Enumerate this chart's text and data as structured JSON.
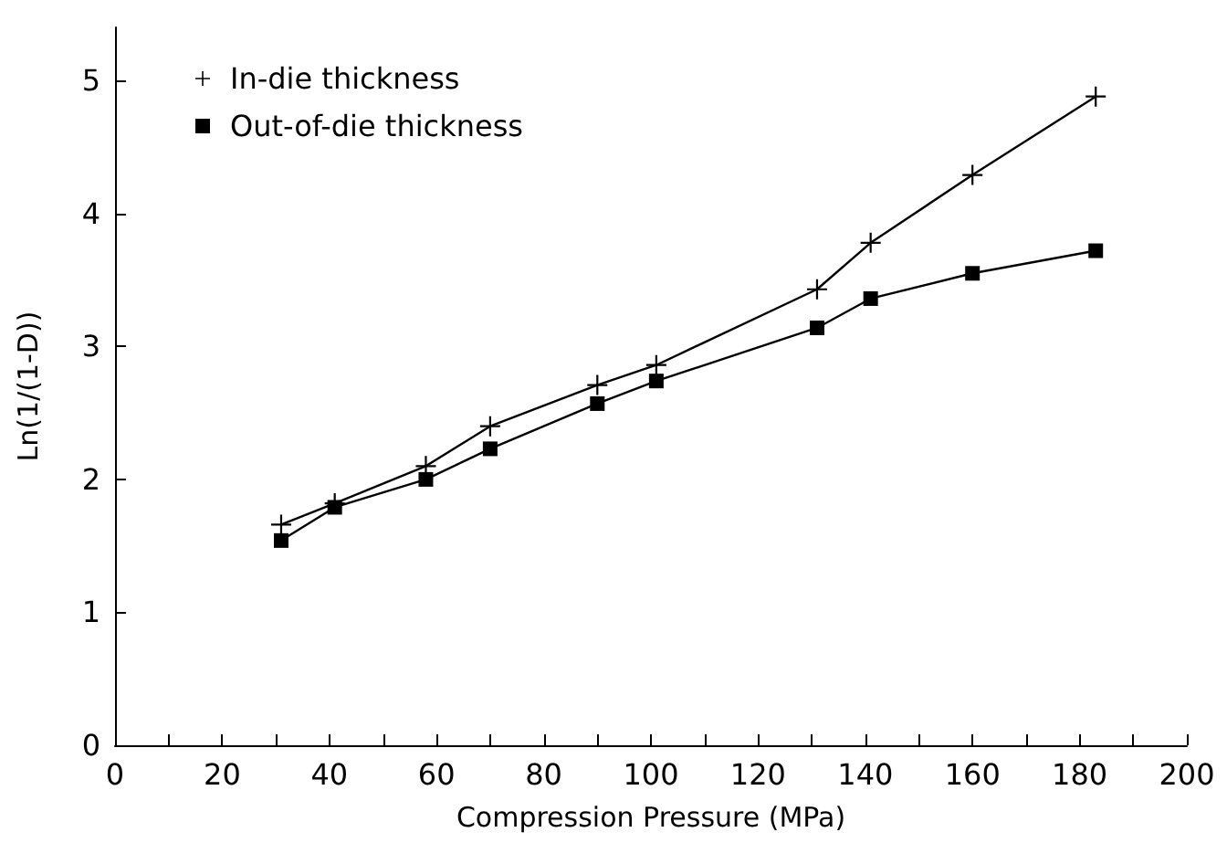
{
  "chart_data": {
    "type": "line",
    "xlabel": "Compression Pressure (MPa)",
    "ylabel": "Ln(1/(1-D))",
    "x": [
      31,
      41,
      58,
      70,
      90,
      101,
      131,
      141,
      160,
      183
    ],
    "series": [
      {
        "name": "In-die thickness",
        "color": "#000000",
        "marker": "cross",
        "values": [
          1.66,
          1.82,
          2.1,
          2.4,
          2.71,
          2.86,
          3.43,
          3.78,
          4.29,
          4.88
        ]
      },
      {
        "name": "Out-of-die thickness",
        "color": "#000000",
        "marker": "square",
        "values": [
          1.54,
          1.79,
          2.0,
          2.23,
          2.57,
          2.74,
          3.14,
          3.36,
          3.55,
          3.72
        ]
      }
    ],
    "xlim": [
      0,
      200
    ],
    "xticks": [
      0,
      {
        "value": 10,
        "label": null
      },
      20,
      {
        "value": 30,
        "label": null
      },
      40,
      {
        "value": 50,
        "label": null
      },
      60,
      {
        "value": 70,
        "label": null
      },
      80,
      {
        "value": 90,
        "label": null
      },
      100,
      {
        "value": 110,
        "label": null
      },
      120,
      {
        "value": 130,
        "label": null
      },
      140,
      {
        "value": 150,
        "label": null
      },
      160,
      {
        "value": 170,
        "label": null
      },
      180,
      {
        "value": 190,
        "label": null
      },
      200
    ],
    "ylim": [
      0,
      5.4
    ],
    "yticks": [
      0,
      1,
      2,
      3,
      4,
      5
    ],
    "grid": false,
    "legend": "top left",
    "line_style": "solid"
  }
}
